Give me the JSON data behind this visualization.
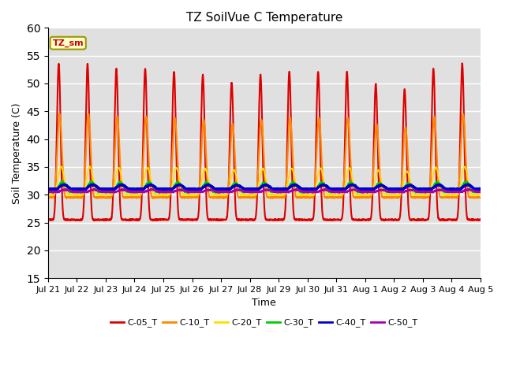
{
  "title": "TZ SoilVue C Temperature",
  "xlabel": "Time",
  "ylabel": "Soil Temperature (C)",
  "ylim": [
    15,
    60
  ],
  "yticks": [
    15,
    20,
    25,
    30,
    35,
    40,
    45,
    50,
    55,
    60
  ],
  "background_color": "#e0e0e0",
  "figure_color": "#ffffff",
  "annotation_text": "TZ_sm",
  "annotation_color": "#cc0000",
  "annotation_bg": "#ffffcc",
  "annotation_border": "#999900",
  "series": [
    {
      "label": "C-05_T",
      "color": "#dd0000",
      "base": 25.5,
      "amp": 28.0,
      "power": 6.0,
      "phase": 0.62
    },
    {
      "label": "C-10_T",
      "color": "#ff8800",
      "base": 29.5,
      "amp": 15.0,
      "power": 4.0,
      "phase": 0.65
    },
    {
      "label": "C-20_T",
      "color": "#ffdd00",
      "base": 30.0,
      "amp": 5.0,
      "power": 2.0,
      "phase": 0.7
    },
    {
      "label": "C-30_T",
      "color": "#00cc00",
      "base": 30.5,
      "amp": 1.8,
      "power": 1.5,
      "phase": 0.75
    },
    {
      "label": "C-40_T",
      "color": "#0000cc",
      "base": 31.0,
      "amp": 0.8,
      "power": 1.2,
      "phase": 0.8
    },
    {
      "label": "C-50_T",
      "color": "#aa00aa",
      "base": 30.5,
      "amp": 0.4,
      "power": 1.0,
      "phase": 0.85
    }
  ],
  "x_tick_labels": [
    "Jul 21",
    "Jul 22",
    "Jul 23",
    "Jul 24",
    "Jul 25",
    "Jul 26",
    "Jul 27",
    "Jul 28",
    "Jul 29",
    "Jul 30",
    "Jul 31",
    "Aug 1",
    "Aug 2",
    "Aug 3",
    "Aug 4",
    "Aug 5"
  ],
  "n_days": 15,
  "points_per_day": 240
}
